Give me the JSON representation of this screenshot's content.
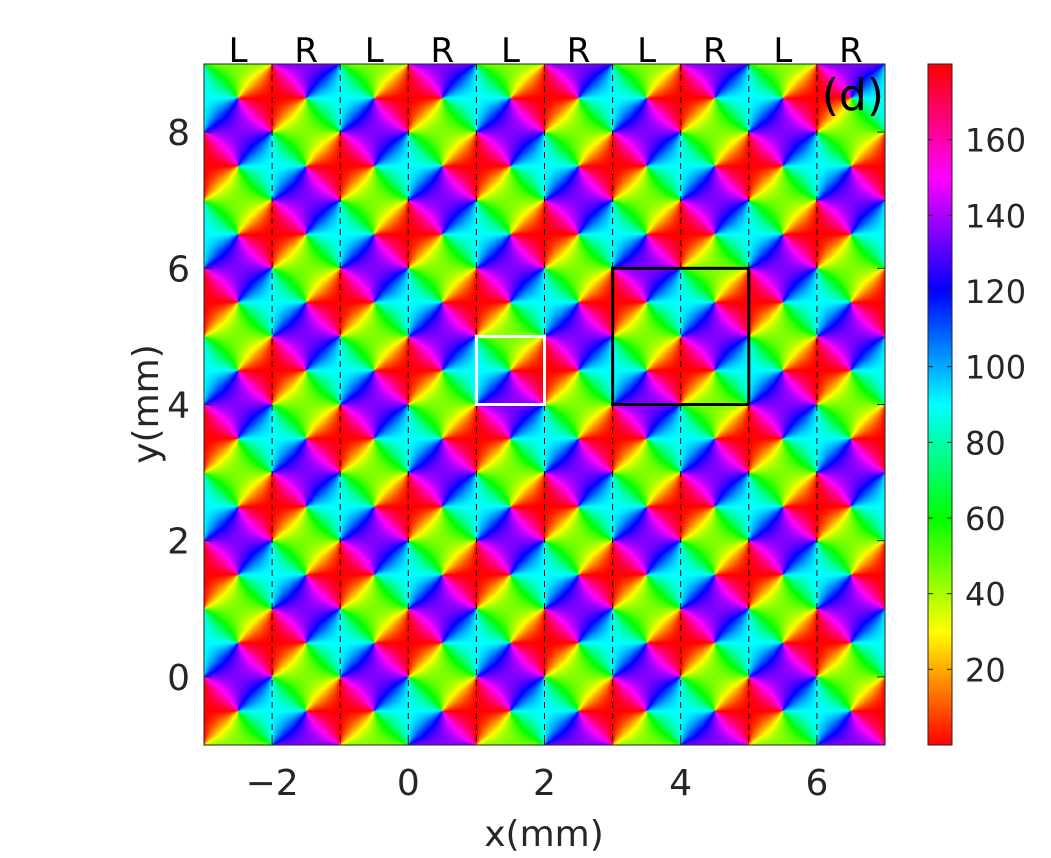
{
  "chart_data": {
    "type": "heatmap",
    "title": "",
    "panel_label": "(d)",
    "xlabel": "x(mm)",
    "ylabel": "y(mm)",
    "xlim": [
      -3,
      7
    ],
    "ylim": [
      -1,
      9
    ],
    "xticks": [
      -2,
      0,
      2,
      4,
      6
    ],
    "yticks": [
      0,
      2,
      4,
      6,
      8
    ],
    "xtick_labels": [
      "−2",
      "0",
      "2",
      "4",
      "6"
    ],
    "ytick_labels": [
      "0",
      "2",
      "4",
      "6",
      "8"
    ],
    "colorbar": {
      "range": [
        0,
        180
      ],
      "ticks": [
        20,
        40,
        60,
        80,
        100,
        120,
        140,
        160
      ],
      "tick_labels": [
        "20",
        "40",
        "60",
        "80",
        "100",
        "120",
        "140",
        "160"
      ],
      "colormap": "hsv"
    },
    "field": {
      "description": "orientation angle (deg) of a periodic pinwheel pattern, period 2 mm in x and y",
      "period_x": 2,
      "period_y": 2
    },
    "dashed_lines_x": [
      -2,
      -1,
      0,
      1,
      2,
      3,
      4,
      5,
      6
    ],
    "column_labels": [
      {
        "x": -2.5,
        "text": "L"
      },
      {
        "x": -1.5,
        "text": "R"
      },
      {
        "x": -0.5,
        "text": "L"
      },
      {
        "x": 0.5,
        "text": "R"
      },
      {
        "x": 1.5,
        "text": "L"
      },
      {
        "x": 2.5,
        "text": "R"
      },
      {
        "x": 3.5,
        "text": "L"
      },
      {
        "x": 4.5,
        "text": "R"
      },
      {
        "x": 5.5,
        "text": "L"
      },
      {
        "x": 6.5,
        "text": "R"
      }
    ],
    "rectangles": [
      {
        "x0": 1,
        "x1": 2,
        "y0": 4,
        "y1": 5,
        "color": "#ffffff"
      },
      {
        "x0": 3,
        "x1": 5,
        "y0": 4,
        "y1": 6,
        "color": "#000000"
      }
    ]
  }
}
